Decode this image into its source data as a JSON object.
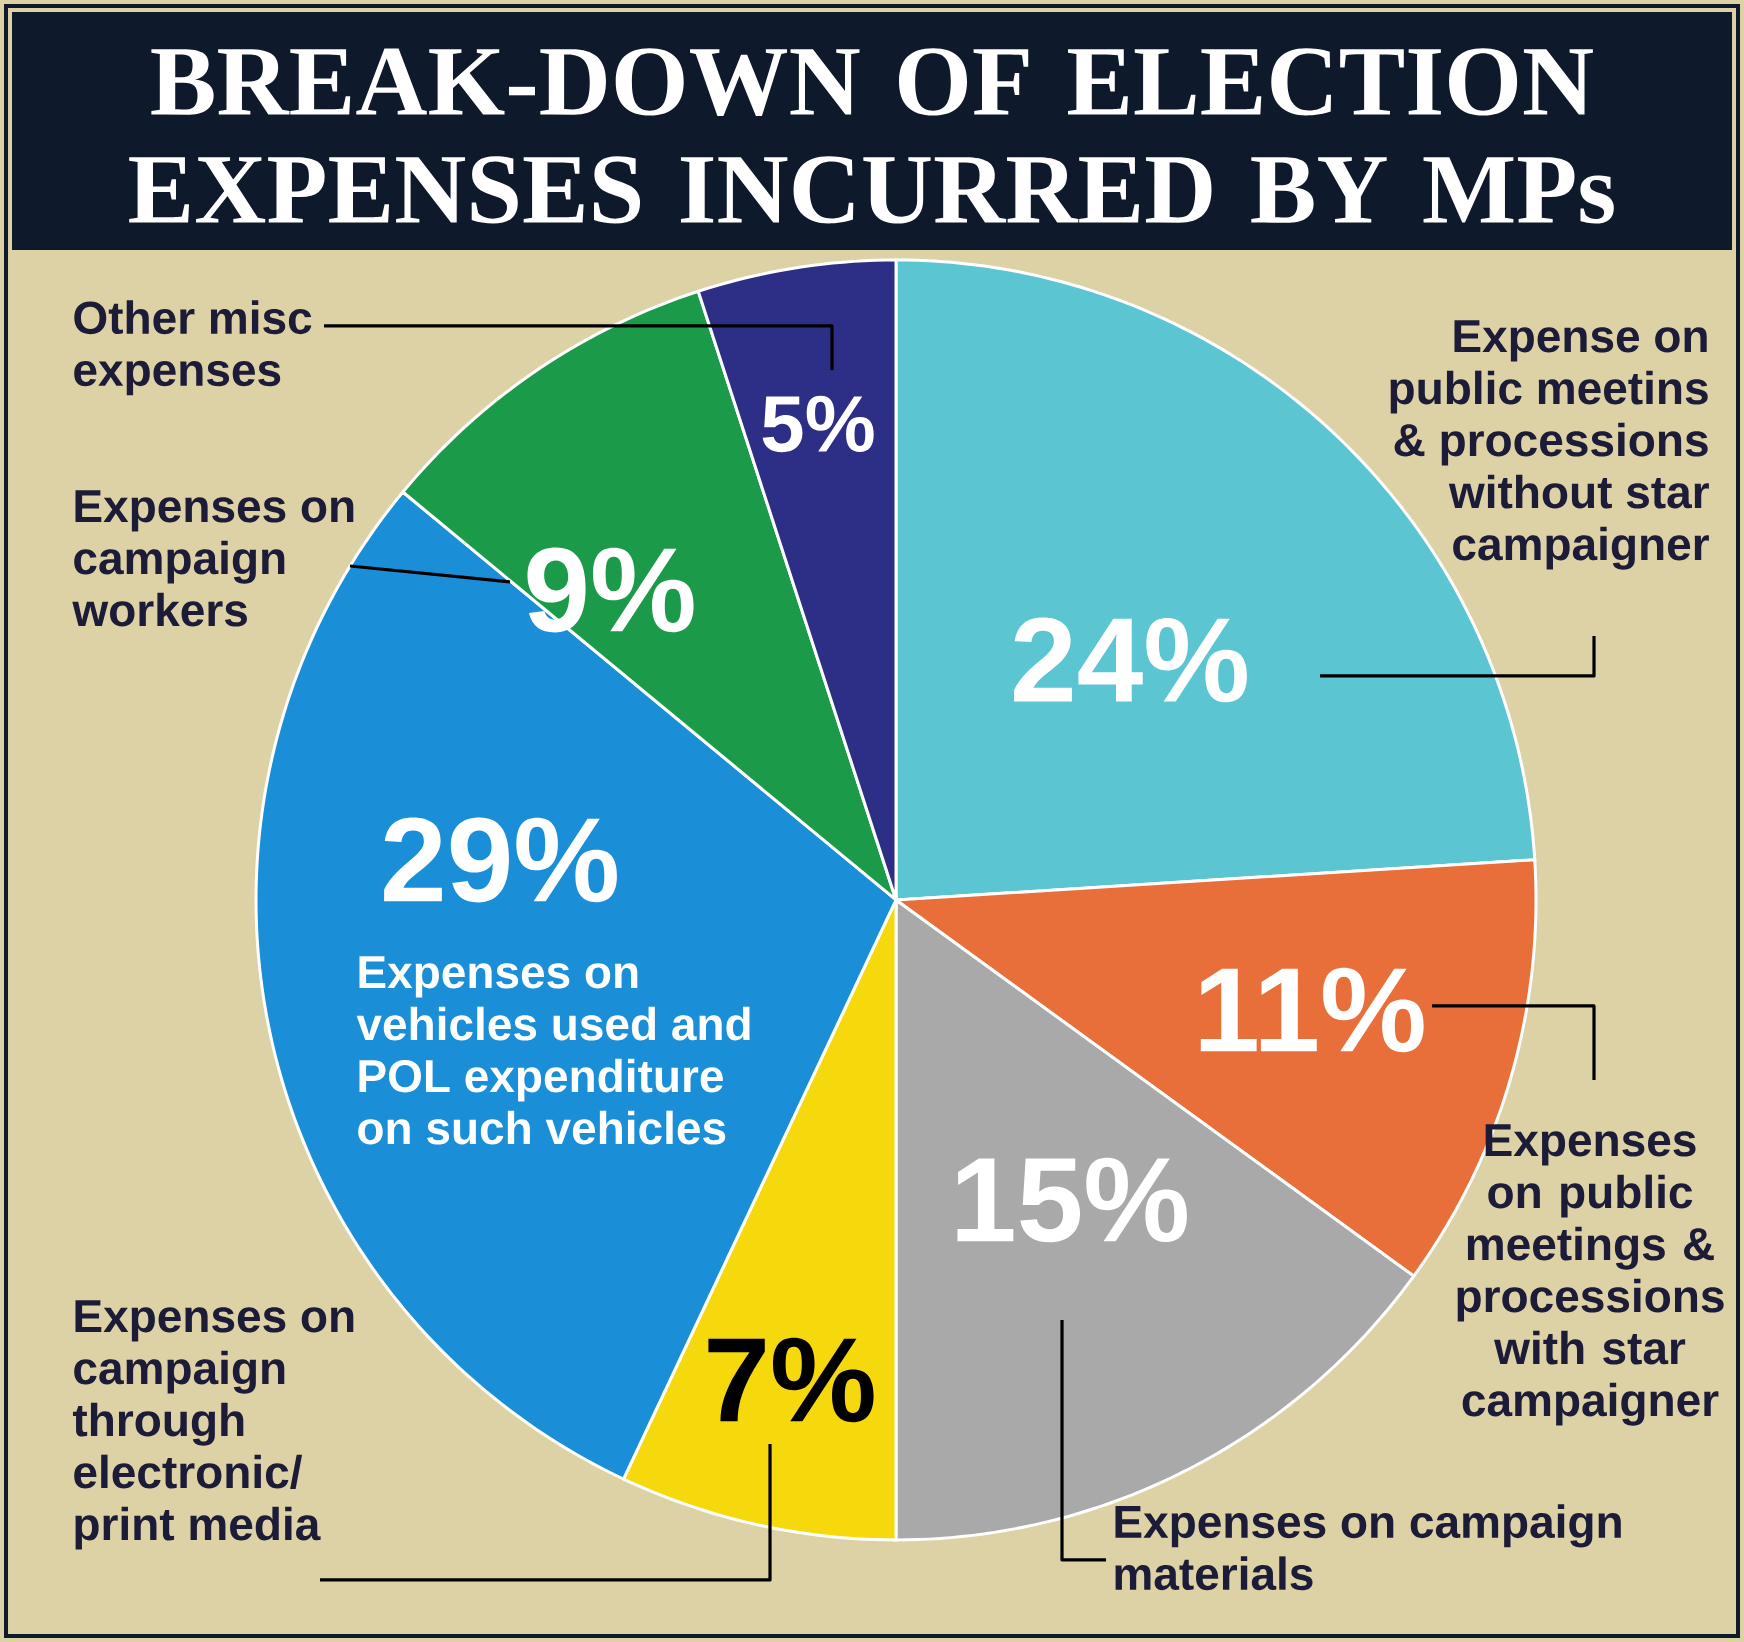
{
  "chart_data": {
    "type": "pie",
    "title": "BREAK-DOWN OF ELECTION EXPENSES INCURRED BY MPs",
    "categories": [
      "Expense on public meetins & processions without star campaigner",
      "Expenses on public meetings & processions with star campaigner",
      "Expenses on campaign materials",
      "Expenses on campaign through electronic/ print media",
      "Expenses on vehicles used and POL expenditure on such vehicles",
      "Expenses on campaign workers",
      "Other misc expenses"
    ],
    "values": [
      24,
      11,
      15,
      7,
      29,
      9,
      5
    ],
    "value_labels": [
      "24%",
      "11%",
      "15%",
      "7%",
      "29%",
      "9%",
      "5%"
    ],
    "colors": [
      "#5bc5d2",
      "#e86f3a",
      "#a9a9a9",
      "#f6d90c",
      "#1a8fd8",
      "#1b9a4a",
      "#2d2e86"
    ]
  }
}
